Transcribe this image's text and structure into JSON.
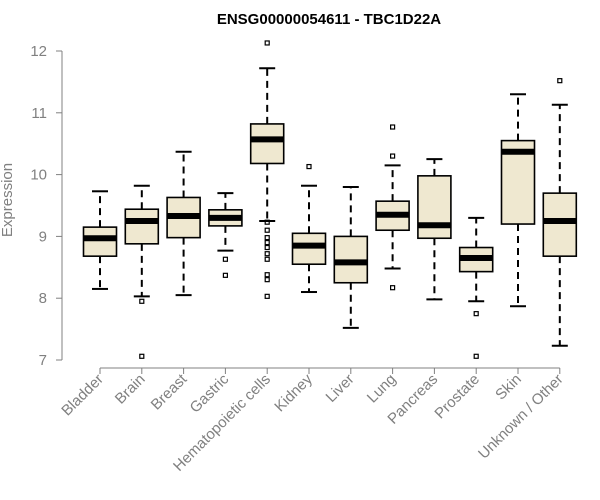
{
  "chart_data": {
    "type": "box",
    "title": "ENSG00000054611 - TBC1D22A",
    "xlabel": "",
    "ylabel": "Expression",
    "ylim": [
      7,
      12
    ],
    "yticks": [
      7,
      8,
      9,
      10,
      11,
      12
    ],
    "grid": false,
    "colors": {
      "box_fill": "#efe8d0",
      "stroke": "#000000",
      "axis": "#808080"
    },
    "categories": [
      "Bladder",
      "Brain",
      "Breast",
      "Gastric",
      "Hematopoietic cells",
      "Kidney",
      "Liver",
      "Lung",
      "Pancreas",
      "Prostate",
      "Skin",
      "Unknown / Other"
    ],
    "boxes": [
      {
        "category": "Bladder",
        "whisker_low": 8.15,
        "q1": 8.68,
        "median": 8.97,
        "q3": 9.15,
        "whisker_high": 9.73,
        "outliers": []
      },
      {
        "category": "Brain",
        "whisker_low": 8.03,
        "q1": 8.88,
        "median": 9.25,
        "q3": 9.44,
        "whisker_high": 9.82,
        "outliers": [
          7.95,
          7.06
        ]
      },
      {
        "category": "Breast",
        "whisker_low": 8.05,
        "q1": 8.98,
        "median": 9.33,
        "q3": 9.63,
        "whisker_high": 10.37,
        "outliers": []
      },
      {
        "category": "Gastric",
        "whisker_low": 8.77,
        "q1": 9.17,
        "median": 9.3,
        "q3": 9.43,
        "whisker_high": 9.7,
        "outliers": [
          8.63,
          8.37
        ]
      },
      {
        "category": "Hematopoietic cells",
        "whisker_low": 9.25,
        "q1": 10.18,
        "median": 10.57,
        "q3": 10.82,
        "whisker_high": 11.72,
        "outliers": [
          12.13,
          9.23,
          9.1,
          8.98,
          8.9,
          8.82,
          8.72,
          8.63,
          8.38,
          8.3,
          8.03
        ]
      },
      {
        "category": "Kidney",
        "whisker_low": 8.1,
        "q1": 8.55,
        "median": 8.85,
        "q3": 9.05,
        "whisker_high": 9.82,
        "outliers": [
          10.13
        ]
      },
      {
        "category": "Liver",
        "whisker_low": 7.52,
        "q1": 8.25,
        "median": 8.58,
        "q3": 9.0,
        "whisker_high": 9.8,
        "outliers": []
      },
      {
        "category": "Lung",
        "whisker_low": 8.48,
        "q1": 9.1,
        "median": 9.35,
        "q3": 9.57,
        "whisker_high": 10.15,
        "outliers": [
          10.77,
          10.3,
          8.17
        ]
      },
      {
        "category": "Pancreas",
        "whisker_low": 7.98,
        "q1": 8.97,
        "median": 9.18,
        "q3": 9.98,
        "whisker_high": 10.25,
        "outliers": []
      },
      {
        "category": "Prostate",
        "whisker_low": 7.95,
        "q1": 8.43,
        "median": 8.65,
        "q3": 8.82,
        "whisker_high": 9.3,
        "outliers": [
          7.75,
          7.06
        ]
      },
      {
        "category": "Skin",
        "whisker_low": 7.87,
        "q1": 9.2,
        "median": 10.37,
        "q3": 10.55,
        "whisker_high": 11.3,
        "outliers": []
      },
      {
        "category": "Unknown / Other",
        "whisker_low": 7.23,
        "q1": 8.68,
        "median": 9.25,
        "q3": 9.7,
        "whisker_high": 11.13,
        "outliers": [
          11.52
        ]
      }
    ]
  }
}
